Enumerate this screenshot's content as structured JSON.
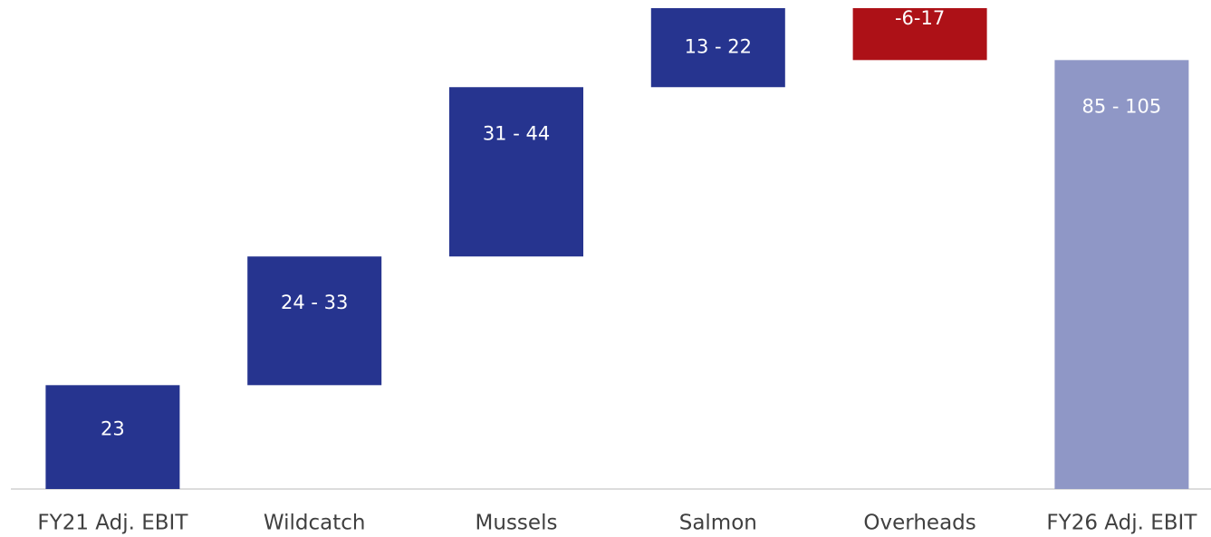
{
  "chart_data": {
    "type": "waterfall",
    "categories": [
      "FY21 Adj. EBIT",
      "Wildcatch",
      "Mussels",
      "Salmon",
      "Overheads",
      "FY26 Adj. EBIT"
    ],
    "values": [
      23,
      28.5,
      37.5,
      17.5,
      -11.5,
      95
    ],
    "value_labels": [
      "23",
      "24 - 33",
      "31 - 44",
      "13 - 22",
      "-6-17",
      "85 - 105"
    ],
    "totals": [
      true,
      false,
      false,
      false,
      false,
      true
    ],
    "colors": [
      "#26348f",
      "#26348f",
      "#26348f",
      "#26348f",
      "#ad1117",
      "#8f97c6"
    ]
  }
}
